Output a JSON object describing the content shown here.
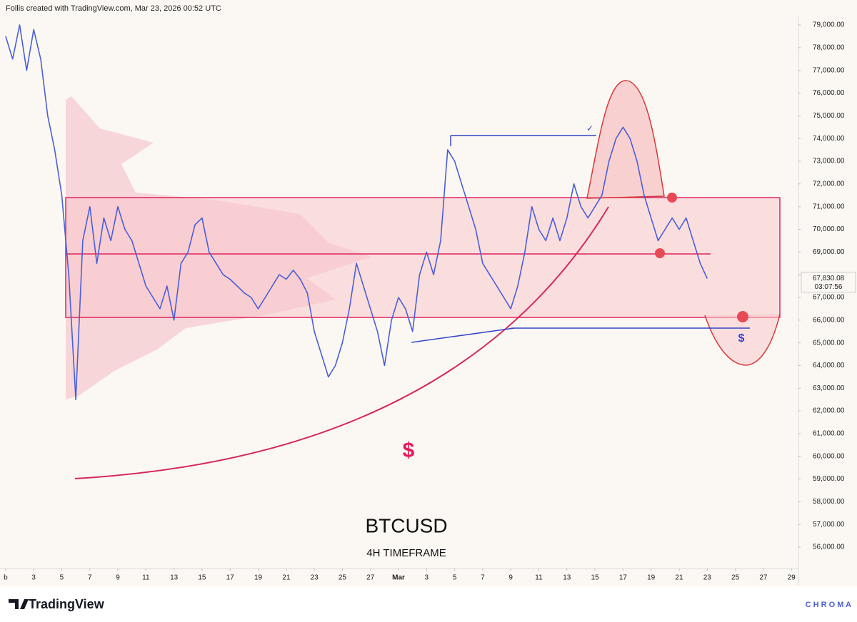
{
  "header": "Follis created with TradingView.com, Mar 23, 2026 00:52 UTC",
  "chart_data": {
    "type": "line",
    "title": "BTCUSD",
    "subtitle": "4H TIMEFRAME",
    "annotations": [
      "$",
      "$",
      "✓"
    ],
    "series": [
      {
        "name": "BTCUSD",
        "color": "#4a5fd8",
        "x": [
          0,
          0.5,
          1,
          1.5,
          2,
          2.5,
          3,
          3.5,
          4,
          4.5,
          5,
          5.5,
          6,
          6.5,
          7,
          7.5,
          8,
          8.5,
          9,
          9.5,
          10,
          10.5,
          11,
          11.5,
          12,
          12.5,
          13,
          13.5,
          14,
          14.5,
          15,
          15.5,
          16,
          16.5,
          17,
          17.5,
          18,
          18.5,
          19,
          19.5,
          20,
          20.5,
          21,
          21.5,
          22,
          22.5,
          23,
          23.5,
          24,
          24.5,
          25,
          25.5,
          26,
          26.5,
          27,
          27.5,
          28,
          28.5,
          29,
          29.5,
          30,
          30.5,
          31,
          31.5,
          32,
          32.5,
          33,
          33.5,
          34,
          34.5,
          35,
          35.5,
          36,
          36.5,
          37,
          37.5,
          38,
          38.5,
          39,
          39.5,
          40,
          40.5,
          41,
          41.5,
          42,
          42.5,
          43,
          43.5,
          44,
          44.5,
          45,
          45.5,
          46,
          46.5,
          47,
          47.5,
          48,
          48.5,
          49,
          49.5,
          50
        ],
        "values": [
          78500,
          77500,
          79000,
          77000,
          78800,
          77500,
          75000,
          73500,
          71500,
          68000,
          62500,
          69500,
          71000,
          68500,
          70500,
          69500,
          71000,
          70000,
          69500,
          68500,
          67500,
          67000,
          66500,
          67500,
          66000,
          68500,
          69000,
          70200,
          70500,
          69000,
          68500,
          68000,
          67800,
          67500,
          67200,
          67000,
          66500,
          67000,
          67500,
          68000,
          67800,
          68200,
          67800,
          67200,
          65500,
          64500,
          63500,
          64000,
          65000,
          66500,
          68500,
          67500,
          66500,
          65500,
          64000,
          66000,
          67000,
          66500,
          65500,
          68000,
          69000,
          68000,
          69500,
          73500,
          73000,
          72000,
          71000,
          70000,
          68500,
          68000,
          67500,
          67000,
          66500,
          67500,
          69000,
          71000,
          70000,
          69500,
          70500,
          69500,
          70500,
          72000,
          71000,
          70500,
          71000,
          71500,
          73000,
          74000,
          74500,
          74000,
          73000,
          71500,
          70500,
          69500,
          70000,
          70500,
          70000,
          70500,
          69500,
          68500,
          67830
        ]
      }
    ],
    "last_price": {
      "value": 67830.08,
      "label": "67,830.08",
      "countdown": "03:07:56"
    },
    "xlim": [
      -0.4,
      56.5
    ],
    "xticks": [
      {
        "value": 0,
        "label": "b"
      },
      {
        "value": 2,
        "label": "3"
      },
      {
        "value": 4,
        "label": "5"
      },
      {
        "value": 6,
        "label": "7"
      },
      {
        "value": 8,
        "label": "9"
      },
      {
        "value": 10,
        "label": "11"
      },
      {
        "value": 12,
        "label": "13"
      },
      {
        "value": 14,
        "label": "15"
      },
      {
        "value": 16,
        "label": "17"
      },
      {
        "value": 18,
        "label": "19"
      },
      {
        "value": 20,
        "label": "21"
      },
      {
        "value": 22,
        "label": "23"
      },
      {
        "value": 24,
        "label": "25"
      },
      {
        "value": 26,
        "label": "27"
      },
      {
        "value": 28,
        "label": "Mar"
      },
      {
        "value": 30,
        "label": "3"
      },
      {
        "value": 32,
        "label": "5"
      },
      {
        "value": 34,
        "label": "7"
      },
      {
        "value": 36,
        "label": "9"
      },
      {
        "value": 38,
        "label": "11"
      },
      {
        "value": 40,
        "label": "13"
      },
      {
        "value": 42,
        "label": "15"
      },
      {
        "value": 44,
        "label": "17"
      },
      {
        "value": 46,
        "label": "19"
      },
      {
        "value": 48,
        "label": "21"
      },
      {
        "value": 50,
        "label": "23"
      },
      {
        "value": 52,
        "label": "25"
      },
      {
        "value": 54,
        "label": "27"
      },
      {
        "value": 56,
        "label": "29"
      }
    ],
    "ylim": [
      55600,
      79400
    ],
    "yticks": [
      {
        "value": 56000,
        "label": "56,000.00"
      },
      {
        "value": 57000,
        "label": "57,000.00"
      },
      {
        "value": 58000,
        "label": "58,000.00"
      },
      {
        "value": 59000,
        "label": "59,000.00"
      },
      {
        "value": 60000,
        "label": "60,000.00"
      },
      {
        "value": 61000,
        "label": "61,000.00"
      },
      {
        "value": 62000,
        "label": "62,000.00"
      },
      {
        "value": 63000,
        "label": "63,000.00"
      },
      {
        "value": 64000,
        "label": "64,000.00"
      },
      {
        "value": 65000,
        "label": "65,000.00"
      },
      {
        "value": 66000,
        "label": "66,000.00"
      },
      {
        "value": 67000,
        "label": "67,000.00"
      },
      {
        "value": 68000,
        "label": "68,000.00"
      },
      {
        "value": 69000,
        "label": "69,000.00"
      },
      {
        "value": 70000,
        "label": "70,000.00"
      },
      {
        "value": 71000,
        "label": "71,000.00"
      },
      {
        "value": 72000,
        "label": "72,000.00"
      },
      {
        "value": 73000,
        "label": "73,000.00"
      },
      {
        "value": 74000,
        "label": "74,000.00"
      },
      {
        "value": 75000,
        "label": "75,000.00"
      },
      {
        "value": 76000,
        "label": "76,000.00"
      },
      {
        "value": 77000,
        "label": "77,000.00"
      },
      {
        "value": 78000,
        "label": "78,000.00"
      },
      {
        "value": 79000,
        "label": "79,000.00"
      }
    ],
    "grid": false
  },
  "footer": {
    "brand": "TradingView",
    "watermark": "C H R O M A"
  }
}
